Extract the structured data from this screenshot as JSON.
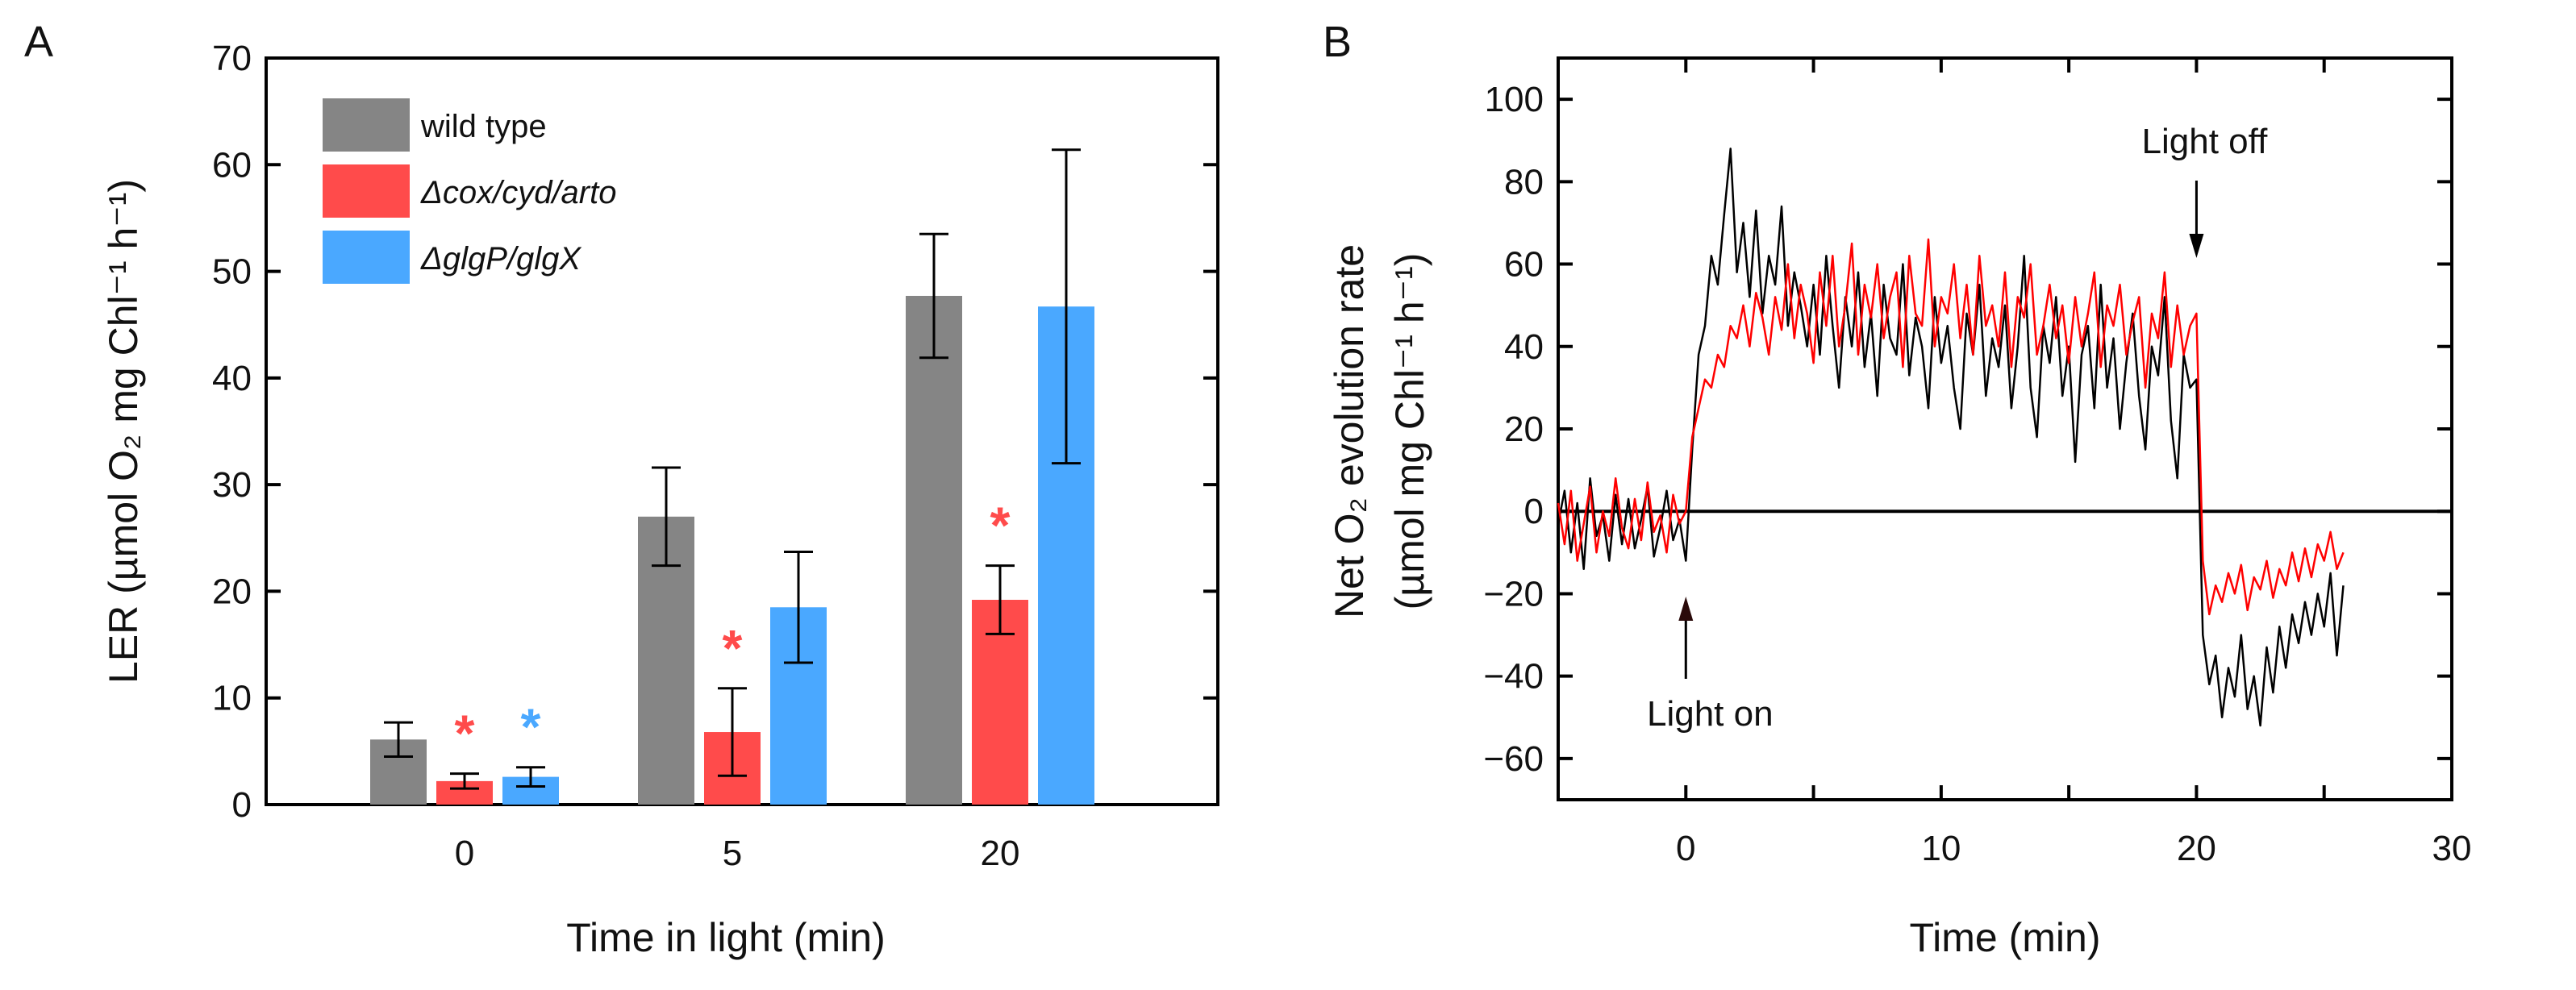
{
  "chart_data": [
    {
      "panel_label": "A",
      "type": "bar",
      "title": "",
      "xlabel": "Time in light (min)",
      "ylabel": "LER (µmol O₂ mg Chl⁻¹ h⁻¹)",
      "ylim": [
        0,
        70
      ],
      "yticks": [
        0,
        10,
        20,
        30,
        40,
        50,
        60,
        70
      ],
      "categories": [
        "0",
        "5",
        "20"
      ],
      "legend_position": "top-left",
      "series": [
        {
          "name": "wild type",
          "color": "#858585",
          "values": [
            6.1,
            27.0,
            47.7
          ],
          "errors": [
            1.6,
            4.6,
            5.8
          ],
          "significant": [
            false,
            false,
            false
          ]
        },
        {
          "name": "Δcox/cyd/arto",
          "italic": true,
          "color": "#ff4b4b",
          "values": [
            2.2,
            6.8,
            19.2
          ],
          "errors": [
            0.7,
            4.1,
            3.2
          ],
          "significant": [
            true,
            true,
            true
          ]
        },
        {
          "name": "ΔglgP/glgX",
          "italic": true,
          "color": "#4aa8ff",
          "values": [
            2.6,
            18.5,
            46.7
          ],
          "errors": [
            0.9,
            5.2,
            14.7
          ],
          "significant": [
            true,
            false,
            false
          ]
        }
      ],
      "significance_marker": "*"
    },
    {
      "panel_label": "B",
      "type": "line",
      "title": "",
      "xlabel": "Time (min)",
      "ylabel_line1": "Net O₂ evolution rate",
      "ylabel_line2": "(µmol mg Chl⁻¹ h⁻¹)",
      "xlim": [
        -5,
        30
      ],
      "ylim": [
        -70,
        110
      ],
      "xticks": [
        0,
        10,
        20,
        30
      ],
      "yticks": [
        -60,
        -40,
        -20,
        0,
        20,
        40,
        60,
        80,
        100
      ],
      "t_start": -5,
      "t_step": 0.25,
      "series": [
        {
          "color": "#000000",
          "values": [
            -3,
            5,
            -10,
            2,
            -14,
            8,
            -6,
            -1,
            -12,
            4,
            -8,
            3,
            -9,
            -2,
            6,
            -11,
            -4,
            5,
            -7,
            -2,
            -12,
            15,
            38,
            45,
            62,
            55,
            72,
            88,
            58,
            70,
            52,
            73,
            48,
            62,
            55,
            74,
            45,
            58,
            50,
            40,
            55,
            38,
            62,
            45,
            30,
            52,
            40,
            58,
            35,
            48,
            28,
            55,
            42,
            38,
            60,
            33,
            47,
            40,
            25,
            52,
            36,
            45,
            30,
            20,
            48,
            38,
            55,
            28,
            42,
            35,
            50,
            25,
            40,
            62,
            30,
            18,
            45,
            36,
            52,
            28,
            40,
            12,
            38,
            45,
            25,
            55,
            30,
            42,
            20,
            36,
            48,
            28,
            15,
            40,
            33,
            52,
            22,
            8,
            38,
            30,
            32,
            -30,
            -42,
            -35,
            -50,
            -38,
            -45,
            -30,
            -48,
            -40,
            -52,
            -33,
            -44,
            -28,
            -38,
            -25,
            -32,
            -22,
            -30,
            -20,
            -28,
            -15,
            -35,
            -18
          ]
        },
        {
          "color": "#ff0000",
          "values": [
            2,
            -8,
            5,
            -12,
            -3,
            6,
            -10,
            0,
            -6,
            8,
            -4,
            -9,
            3,
            -7,
            7,
            -5,
            -1,
            -10,
            4,
            -3,
            0,
            18,
            25,
            32,
            30,
            38,
            35,
            45,
            42,
            50,
            40,
            53,
            47,
            38,
            52,
            44,
            60,
            42,
            55,
            48,
            36,
            58,
            45,
            62,
            40,
            50,
            65,
            38,
            55,
            47,
            60,
            42,
            52,
            58,
            35,
            62,
            48,
            45,
            66,
            40,
            52,
            48,
            60,
            42,
            55,
            38,
            62,
            45,
            50,
            40,
            58,
            35,
            52,
            47,
            60,
            38,
            45,
            55,
            42,
            50,
            36,
            52,
            40,
            48,
            58,
            35,
            50,
            45,
            55,
            38,
            46,
            52,
            30,
            48,
            42,
            58,
            35,
            50,
            38,
            45,
            48,
            -12,
            -25,
            -18,
            -22,
            -15,
            -20,
            -13,
            -24,
            -16,
            -19,
            -12,
            -21,
            -14,
            -18,
            -10,
            -17,
            -9,
            -16,
            -8,
            -12,
            -5,
            -14,
            -10
          ]
        }
      ],
      "zero_line": true,
      "annotations": [
        {
          "text": "Light on",
          "x": 0,
          "arrow": "up"
        },
        {
          "text": "Light off",
          "x": 20,
          "arrow": "down"
        }
      ]
    }
  ]
}
